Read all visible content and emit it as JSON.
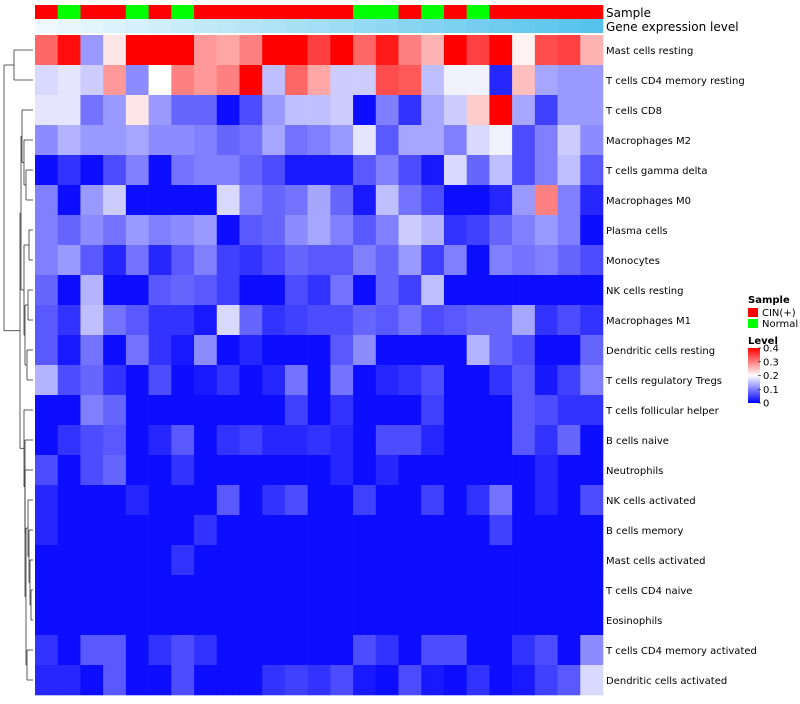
{
  "chart_data": {
    "type": "heatmap",
    "annotation_labels": {
      "sample": "Sample",
      "expression": "Gene expression level"
    },
    "sample_groups": [
      "C",
      "N",
      "C",
      "C",
      "N",
      "C",
      "N",
      "C",
      "C",
      "C",
      "C",
      "C",
      "C",
      "C",
      "N",
      "N",
      "C",
      "N",
      "C",
      "N",
      "C",
      "C",
      "C",
      "C",
      "C"
    ],
    "expression_gradient": [
      0.05,
      0.07,
      0.09,
      0.11,
      0.13,
      0.15,
      0.17,
      0.19,
      0.21,
      0.23,
      0.25,
      0.27,
      0.29,
      0.31,
      0.33,
      0.35,
      0.37,
      0.39,
      0.41,
      0.43,
      0.45,
      0.47,
      0.49,
      0.51,
      0.53
    ],
    "rows": [
      {
        "label": "Mast cells resting",
        "values": [
          0.32,
          0.39,
          0.12,
          0.22,
          0.4,
          0.4,
          0.4,
          0.28,
          0.27,
          0.3,
          0.4,
          0.4,
          0.35,
          0.4,
          0.32,
          0.38,
          0.3,
          0.26,
          0.4,
          0.35,
          0.4,
          0.21,
          0.34,
          0.35,
          0.26
        ]
      },
      {
        "label": "T cells CD4 memory resting",
        "values": [
          0.17,
          0.18,
          0.16,
          0.28,
          0.11,
          0.2,
          0.3,
          0.28,
          0.3,
          0.4,
          0.15,
          0.32,
          0.27,
          0.16,
          0.16,
          0.34,
          0.33,
          0.15,
          0.19,
          0.19,
          0.03,
          0.25,
          0.13,
          0.12,
          0.12
        ]
      },
      {
        "label": "T cells CD8",
        "values": [
          0.18,
          0.18,
          0.09,
          0.12,
          0.22,
          0.12,
          0.08,
          0.08,
          0.01,
          0.06,
          0.12,
          0.15,
          0.15,
          0.16,
          0.01,
          0.1,
          0.04,
          0.13,
          0.16,
          0.24,
          0.4,
          0.13,
          0.05,
          0.12,
          0.12
        ]
      },
      {
        "label": "Macrophages M2",
        "values": [
          0.11,
          0.14,
          0.12,
          0.12,
          0.13,
          0.11,
          0.11,
          0.1,
          0.08,
          0.09,
          0.13,
          0.09,
          0.1,
          0.12,
          0.18,
          0.07,
          0.13,
          0.13,
          0.1,
          0.17,
          0.19,
          0.06,
          0.1,
          0.16,
          0.11
        ]
      },
      {
        "label": "T cells gamma delta",
        "values": [
          0.01,
          0.04,
          0.01,
          0.06,
          0.1,
          0.01,
          0.09,
          0.1,
          0.1,
          0.08,
          0.06,
          0.02,
          0.02,
          0.02,
          0.07,
          0.1,
          0.06,
          0.02,
          0.17,
          0.08,
          0.15,
          0.06,
          0.1,
          0.15,
          0.07
        ]
      },
      {
        "label": "Macrophages M0",
        "values": [
          0.1,
          0.01,
          0.12,
          0.16,
          0.01,
          0.01,
          0.01,
          0.01,
          0.17,
          0.1,
          0.08,
          0.09,
          0.13,
          0.08,
          0.02,
          0.15,
          0.09,
          0.06,
          0.01,
          0.01,
          0.03,
          0.12,
          0.3,
          0.1,
          0.03
        ]
      },
      {
        "label": "Plasma cells",
        "values": [
          0.1,
          0.08,
          0.11,
          0.09,
          0.12,
          0.1,
          0.11,
          0.12,
          0.01,
          0.07,
          0.08,
          0.11,
          0.13,
          0.1,
          0.07,
          0.1,
          0.16,
          0.14,
          0.04,
          0.05,
          0.08,
          0.1,
          0.12,
          0.1,
          0.01
        ]
      },
      {
        "label": "Monocytes",
        "values": [
          0.1,
          0.12,
          0.07,
          0.03,
          0.09,
          0.03,
          0.07,
          0.1,
          0.05,
          0.04,
          0.06,
          0.08,
          0.07,
          0.07,
          0.1,
          0.08,
          0.12,
          0.05,
          0.1,
          0.01,
          0.1,
          0.09,
          0.1,
          0.08,
          0.06
        ]
      },
      {
        "label": "NK cells resting",
        "values": [
          0.08,
          0.01,
          0.14,
          0.01,
          0.01,
          0.07,
          0.08,
          0.07,
          0.05,
          0.01,
          0.01,
          0.06,
          0.04,
          0.09,
          0.01,
          0.08,
          0.05,
          0.15,
          0.01,
          0.01,
          0.01,
          0.01,
          0.01,
          0.01,
          0.01
        ]
      },
      {
        "label": "Macrophages M1",
        "values": [
          0.07,
          0.04,
          0.15,
          0.09,
          0.07,
          0.04,
          0.04,
          0.02,
          0.17,
          0.08,
          0.04,
          0.05,
          0.06,
          0.06,
          0.08,
          0.07,
          0.09,
          0.06,
          0.07,
          0.08,
          0.08,
          0.13,
          0.04,
          0.06,
          0.04
        ]
      },
      {
        "label": "Dendritic cells resting",
        "values": [
          0.07,
          0.02,
          0.09,
          0.01,
          0.09,
          0.04,
          0.02,
          0.11,
          0.01,
          0.03,
          0.01,
          0.01,
          0.01,
          0.07,
          0.11,
          0.01,
          0.01,
          0.01,
          0.01,
          0.14,
          0.08,
          0.06,
          0.01,
          0.01,
          0.08
        ]
      },
      {
        "label": "T cells regulatory  Tregs",
        "values": [
          0.14,
          0.06,
          0.08,
          0.04,
          0.01,
          0.06,
          0.01,
          0.02,
          0.04,
          0.01,
          0.03,
          0.09,
          0.01,
          0.09,
          0.01,
          0.03,
          0.04,
          0.06,
          0.01,
          0.01,
          0.04,
          0.07,
          0.02,
          0.05,
          0.1
        ]
      },
      {
        "label": "T cells follicular helper",
        "values": [
          0.01,
          0.01,
          0.1,
          0.08,
          0.01,
          0.01,
          0.01,
          0.01,
          0.01,
          0.01,
          0.01,
          0.05,
          0.01,
          0.04,
          0.01,
          0.01,
          0.01,
          0.05,
          0.01,
          0.01,
          0.01,
          0.07,
          0.06,
          0.04,
          0.04
        ]
      },
      {
        "label": "B cells naive",
        "values": [
          0.01,
          0.04,
          0.06,
          0.07,
          0.01,
          0.03,
          0.07,
          0.01,
          0.04,
          0.05,
          0.03,
          0.03,
          0.04,
          0.03,
          0.01,
          0.06,
          0.06,
          0.03,
          0.01,
          0.01,
          0.01,
          0.07,
          0.04,
          0.08,
          0.01
        ]
      },
      {
        "label": "Neutrophils",
        "values": [
          0.06,
          0.01,
          0.06,
          0.08,
          0.01,
          0.01,
          0.04,
          0.01,
          0.01,
          0.01,
          0.01,
          0.01,
          0.01,
          0.03,
          0.01,
          0.03,
          0.01,
          0.01,
          0.01,
          0.01,
          0.01,
          0.01,
          0.03,
          0.01,
          0.01
        ]
      },
      {
        "label": "NK cells activated",
        "values": [
          0.03,
          0.01,
          0.01,
          0.01,
          0.03,
          0.01,
          0.01,
          0.01,
          0.07,
          0.01,
          0.04,
          0.06,
          0.01,
          0.01,
          0.05,
          0.01,
          0.01,
          0.05,
          0.01,
          0.04,
          0.09,
          0.01,
          0.03,
          0.01,
          0.06
        ]
      },
      {
        "label": "B cells memory",
        "values": [
          0.03,
          0.01,
          0.01,
          0.01,
          0.01,
          0.01,
          0.01,
          0.04,
          0.01,
          0.01,
          0.01,
          0.01,
          0.01,
          0.01,
          0.01,
          0.01,
          0.01,
          0.01,
          0.01,
          0.01,
          0.05,
          0.01,
          0.01,
          0.01,
          0.01
        ]
      },
      {
        "label": "Mast cells activated",
        "values": [
          0.01,
          0.01,
          0.01,
          0.01,
          0.01,
          0.01,
          0.04,
          0.01,
          0.01,
          0.01,
          0.01,
          0.01,
          0.01,
          0.01,
          0.01,
          0.01,
          0.01,
          0.01,
          0.01,
          0.01,
          0.01,
          0.01,
          0.01,
          0.01,
          0.01
        ]
      },
      {
        "label": "T cells CD4 naive",
        "values": [
          0.01,
          0.01,
          0.01,
          0.01,
          0.01,
          0.01,
          0.01,
          0.01,
          0.01,
          0.01,
          0.01,
          0.01,
          0.01,
          0.01,
          0.01,
          0.01,
          0.01,
          0.01,
          0.01,
          0.01,
          0.01,
          0.01,
          0.01,
          0.01,
          0.01
        ]
      },
      {
        "label": "Eosinophils",
        "values": [
          0.01,
          0.01,
          0.01,
          0.01,
          0.01,
          0.01,
          0.01,
          0.01,
          0.01,
          0.01,
          0.01,
          0.01,
          0.01,
          0.01,
          0.01,
          0.01,
          0.01,
          0.01,
          0.01,
          0.01,
          0.01,
          0.01,
          0.01,
          0.01,
          0.01
        ]
      },
      {
        "label": "T cells CD4 memory activated",
        "values": [
          0.04,
          0.01,
          0.07,
          0.07,
          0.01,
          0.04,
          0.06,
          0.04,
          0.01,
          0.01,
          0.01,
          0.01,
          0.01,
          0.01,
          0.06,
          0.04,
          0.01,
          0.06,
          0.06,
          0.01,
          0.01,
          0.04,
          0.06,
          0.01,
          0.11
        ]
      },
      {
        "label": "Dendritic cells activated",
        "values": [
          0.03,
          0.03,
          0.01,
          0.07,
          0.01,
          0.01,
          0.06,
          0.01,
          0.01,
          0.01,
          0.04,
          0.05,
          0.04,
          0.06,
          0.02,
          0.01,
          0.06,
          0.02,
          0.01,
          0.04,
          0.01,
          0.02,
          0.05,
          0.07,
          0.17
        ]
      }
    ],
    "legend": {
      "sample_title": "Sample",
      "sample_entries": [
        {
          "key": "C",
          "label": "CIN(+)",
          "color": "#ff0000"
        },
        {
          "key": "N",
          "label": "Normal",
          "color": "#00ff00"
        }
      ],
      "level_title": "Level",
      "level_ticks": [
        0.4,
        0.3,
        0.2,
        0.1,
        0
      ],
      "level_min": 0,
      "level_max": 0.4
    },
    "color_scale": {
      "low": "#0000ff",
      "mid": "#ffffff",
      "high": "#ff0000",
      "mid_value": 0.2
    },
    "annotation_scale": {
      "low": "#ffffff",
      "high": "#55c3ec"
    }
  }
}
